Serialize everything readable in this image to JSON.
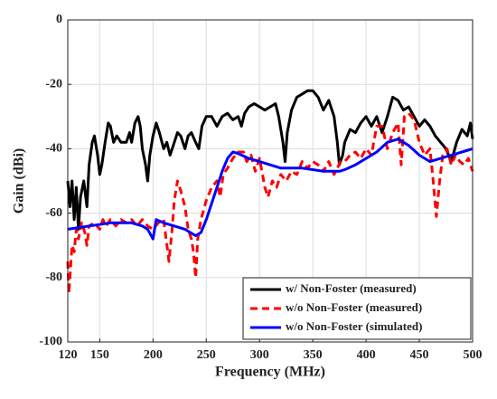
{
  "chart_data": {
    "type": "line",
    "xlabel": "Frequency (MHz)",
    "ylabel": "Gain (dBi)",
    "xlim": [
      120,
      500
    ],
    "xticks": [
      120,
      150,
      200,
      250,
      300,
      350,
      400,
      450,
      500
    ],
    "ylim": [
      -100,
      0
    ],
    "yticks": [
      -100,
      -80,
      -60,
      -40,
      -20,
      0
    ],
    "grid": true,
    "legend": "lower right",
    "series": [
      {
        "name": "w/ Non-Foster (measured)",
        "color": "#000000",
        "style": "solid",
        "x": [
          120,
          122,
          124,
          126,
          128,
          130,
          132,
          135,
          138,
          140,
          143,
          145,
          148,
          150,
          152,
          155,
          158,
          160,
          163,
          166,
          170,
          175,
          178,
          180,
          183,
          186,
          188,
          190,
          193,
          195,
          197,
          200,
          203,
          206,
          210,
          213,
          216,
          220,
          223,
          226,
          230,
          233,
          236,
          240,
          243,
          246,
          250,
          255,
          260,
          265,
          270,
          275,
          280,
          283,
          286,
          290,
          295,
          300,
          305,
          310,
          315,
          318,
          322,
          324,
          326,
          330,
          335,
          340,
          345,
          350,
          355,
          360,
          365,
          370,
          373,
          375,
          378,
          380,
          385,
          390,
          395,
          400,
          405,
          410,
          415,
          420,
          425,
          430,
          435,
          440,
          445,
          450,
          455,
          460,
          465,
          470,
          475,
          480,
          485,
          490,
          495,
          498,
          500
        ],
        "values": [
          -50,
          -58,
          -50,
          -62,
          -52,
          -65,
          -55,
          -50,
          -58,
          -45,
          -38,
          -36,
          -42,
          -48,
          -45,
          -38,
          -32,
          -33,
          -38,
          -36,
          -38,
          -38,
          -35,
          -38,
          -32,
          -30,
          -33,
          -40,
          -45,
          -50,
          -42,
          -36,
          -32,
          -35,
          -40,
          -38,
          -42,
          -38,
          -35,
          -36,
          -40,
          -36,
          -35,
          -38,
          -40,
          -33,
          -30,
          -30,
          -33,
          -30,
          -29,
          -31,
          -30,
          -33,
          -29,
          -27,
          -26,
          -27,
          -28,
          -27,
          -26,
          -30,
          -38,
          -44,
          -35,
          -28,
          -24,
          -23,
          -22,
          -22,
          -24,
          -28,
          -25,
          -30,
          -38,
          -45,
          -42,
          -38,
          -34,
          -35,
          -32,
          -30,
          -33,
          -30,
          -35,
          -30,
          -24,
          -25,
          -28,
          -27,
          -30,
          -33,
          -31,
          -33,
          -36,
          -38,
          -40,
          -44,
          -38,
          -34,
          -36,
          -32,
          -37
        ]
      },
      {
        "name": "w/o Non-Foster (measured)",
        "color": "#ff0000",
        "style": "dashed",
        "x": [
          120,
          121,
          122,
          124,
          126,
          128,
          130,
          133,
          136,
          138,
          140,
          145,
          150,
          153,
          156,
          160,
          165,
          170,
          175,
          180,
          185,
          190,
          195,
          200,
          205,
          210,
          215,
          218,
          220,
          223,
          226,
          230,
          233,
          236,
          238,
          240,
          242,
          245,
          250,
          255,
          260,
          263,
          266,
          270,
          275,
          280,
          285,
          288,
          292,
          296,
          300,
          305,
          308,
          312,
          316,
          320,
          325,
          330,
          335,
          340,
          345,
          350,
          355,
          360,
          365,
          370,
          373,
          376,
          380,
          385,
          390,
          395,
          400,
          405,
          410,
          415,
          420,
          425,
          430,
          433,
          436,
          440,
          445,
          450,
          455,
          460,
          463,
          466,
          469,
          472,
          476,
          480,
          484,
          488,
          492,
          496,
          500
        ],
        "values": [
          -75,
          -85,
          -80,
          -70,
          -72,
          -65,
          -68,
          -63,
          -66,
          -70,
          -64,
          -63,
          -65,
          -62,
          -64,
          -62,
          -64,
          -62,
          -63,
          -62,
          -64,
          -62,
          -64,
          -65,
          -63,
          -62,
          -75,
          -65,
          -56,
          -50,
          -53,
          -58,
          -65,
          -68,
          -72,
          -80,
          -68,
          -62,
          -56,
          -52,
          -50,
          -55,
          -48,
          -46,
          -43,
          -41,
          -41,
          -44,
          -42,
          -47,
          -43,
          -52,
          -55,
          -50,
          -52,
          -48,
          -50,
          -47,
          -48,
          -44,
          -46,
          -44,
          -45,
          -47,
          -44,
          -48,
          -46,
          -44,
          -44,
          -42,
          -41,
          -43,
          -40,
          -42,
          -33,
          -33,
          -40,
          -35,
          -32,
          -45,
          -30,
          -29,
          -31,
          -38,
          -42,
          -40,
          -50,
          -61,
          -50,
          -42,
          -40,
          -45,
          -42,
          -44,
          -45,
          -43,
          -47
        ]
      },
      {
        "name": "w/o Non-Foster (simulated)",
        "color": "#0000ff",
        "style": "solid",
        "x": [
          120,
          140,
          160,
          180,
          190,
          195,
          200,
          203,
          210,
          220,
          230,
          235,
          240,
          245,
          250,
          255,
          260,
          265,
          270,
          275,
          280,
          290,
          300,
          310,
          320,
          330,
          340,
          350,
          360,
          370,
          375,
          380,
          390,
          400,
          410,
          420,
          430,
          440,
          450,
          460,
          470,
          480,
          490,
          500
        ],
        "values": [
          -65,
          -64,
          -63,
          -63,
          -64,
          -65,
          -68,
          -62,
          -63,
          -64,
          -65,
          -66,
          -67,
          -66,
          -62,
          -57,
          -52,
          -47,
          -43,
          -41,
          -41.5,
          -43,
          -44,
          -45,
          -46,
          -46,
          -46,
          -46.5,
          -47,
          -47,
          -47,
          -46.5,
          -45,
          -43,
          -41,
          -38,
          -37,
          -39,
          -42,
          -44,
          -43,
          -42,
          -41,
          -40
        ]
      }
    ]
  }
}
